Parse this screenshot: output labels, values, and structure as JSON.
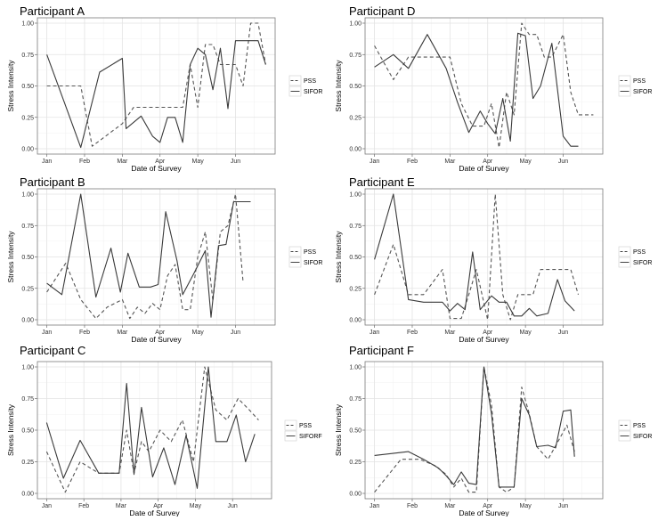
{
  "chart_data": [
    {
      "type": "line",
      "title": "Participant A",
      "xlabel": "Date of Survey",
      "ylabel": "Stress Intensity",
      "x_ticks": [
        "Jan",
        "Feb",
        "Mar",
        "Apr",
        "May",
        "Jun"
      ],
      "y_ticks": [
        "0.00",
        "0.25",
        "0.50",
        "0.75",
        "1.00"
      ],
      "ylim": [
        0,
        1
      ],
      "grid": true,
      "legend": "right",
      "series": [
        {
          "name": "PSS",
          "style": "dashed",
          "x": [
            0.0,
            0.5,
            0.9,
            1.2,
            2.0,
            2.3,
            2.6,
            2.9,
            3.2,
            3.4,
            3.6,
            3.8,
            4.0,
            4.2,
            4.4,
            4.6,
            4.8,
            5.0,
            5.2,
            5.4,
            5.6,
            5.8
          ],
          "values": [
            0.5,
            0.5,
            0.5,
            0.02,
            0.2,
            0.33,
            0.33,
            0.33,
            0.33,
            0.33,
            0.33,
            0.67,
            0.33,
            0.83,
            0.83,
            0.67,
            0.67,
            0.67,
            0.5,
            1.0,
            1.0,
            0.67
          ]
        },
        {
          "name": "SIFOR",
          "style": "solid",
          "x": [
            0.0,
            0.45,
            0.9,
            1.4,
            2.0,
            2.1,
            2.5,
            2.8,
            3.0,
            3.2,
            3.4,
            3.6,
            3.8,
            4.0,
            4.2,
            4.4,
            4.6,
            4.8,
            5.0,
            5.2,
            5.4,
            5.6,
            5.8
          ],
          "values": [
            0.75,
            0.38,
            0.01,
            0.61,
            0.72,
            0.16,
            0.26,
            0.1,
            0.05,
            0.25,
            0.25,
            0.05,
            0.67,
            0.8,
            0.75,
            0.47,
            0.8,
            0.32,
            0.86,
            0.86,
            0.86,
            0.86,
            0.67
          ]
        }
      ]
    },
    {
      "type": "line",
      "title": "Participant D",
      "xlabel": "Date of Survey",
      "ylabel": "Stress Intensity",
      "x_ticks": [
        "Jan",
        "Feb",
        "Mar",
        "Apr",
        "May",
        "Jun"
      ],
      "y_ticks": [
        "0.00",
        "0.25",
        "0.50",
        "0.75",
        "1.00"
      ],
      "ylim": [
        0,
        1
      ],
      "grid": true,
      "legend": "right",
      "series": [
        {
          "name": "PSS",
          "style": "dashed",
          "x": [
            0.0,
            0.5,
            0.9,
            1.2,
            1.6,
            2.0,
            2.3,
            2.6,
            2.9,
            3.1,
            3.3,
            3.5,
            3.7,
            3.9,
            4.1,
            4.3,
            4.5,
            4.7,
            5.0,
            5.2,
            5.4,
            5.6,
            5.8
          ],
          "values": [
            0.82,
            0.55,
            0.73,
            0.73,
            0.73,
            0.73,
            0.36,
            0.18,
            0.18,
            0.36,
            0.01,
            0.45,
            0.27,
            1.0,
            0.91,
            0.91,
            0.73,
            0.73,
            0.91,
            0.45,
            0.27,
            0.27,
            0.27
          ]
        },
        {
          "name": "SIFOR",
          "style": "solid",
          "x": [
            0.0,
            0.5,
            0.9,
            1.4,
            1.9,
            2.2,
            2.5,
            2.8,
            3.0,
            3.2,
            3.4,
            3.6,
            3.8,
            4.0,
            4.2,
            4.4,
            4.7,
            5.0,
            5.2,
            5.4
          ],
          "values": [
            0.65,
            0.75,
            0.64,
            0.91,
            0.64,
            0.37,
            0.13,
            0.3,
            0.2,
            0.12,
            0.4,
            0.06,
            0.92,
            0.9,
            0.4,
            0.5,
            0.84,
            0.1,
            0.02,
            0.02
          ]
        }
      ]
    },
    {
      "type": "line",
      "title": "Participant B",
      "xlabel": "Date of Survey",
      "ylabel": "Stress Intensity",
      "x_ticks": [
        "Jan",
        "Feb",
        "Mar",
        "Apr",
        "May",
        "Jun"
      ],
      "y_ticks": [
        "0.00",
        "0.25",
        "0.50",
        "0.75",
        "1.00"
      ],
      "ylim": [
        0,
        1
      ],
      "grid": true,
      "legend": "right",
      "series": [
        {
          "name": "PSS",
          "style": "dashed",
          "x": [
            0.0,
            0.5,
            0.9,
            1.3,
            1.6,
            2.0,
            2.2,
            2.4,
            2.6,
            2.8,
            3.0,
            3.2,
            3.4,
            3.6,
            3.8,
            4.0,
            4.2,
            4.4,
            4.6,
            4.8,
            5.0,
            5.2
          ],
          "values": [
            0.22,
            0.45,
            0.16,
            0.01,
            0.1,
            0.16,
            0.01,
            0.1,
            0.05,
            0.13,
            0.08,
            0.35,
            0.44,
            0.08,
            0.08,
            0.5,
            0.7,
            0.15,
            0.7,
            0.75,
            1.0,
            0.3
          ]
        },
        {
          "name": "SIFOR",
          "style": "solid",
          "x": [
            0.0,
            0.4,
            0.9,
            1.3,
            1.7,
            1.95,
            2.15,
            2.45,
            2.75,
            2.95,
            3.15,
            3.45,
            3.6,
            3.9,
            4.2,
            4.35,
            4.55,
            4.75,
            4.95,
            5.15,
            5.4
          ],
          "values": [
            0.29,
            0.2,
            1.0,
            0.18,
            0.57,
            0.22,
            0.53,
            0.26,
            0.26,
            0.28,
            0.86,
            0.47,
            0.2,
            0.37,
            0.55,
            0.02,
            0.59,
            0.6,
            0.94,
            0.94,
            0.94
          ]
        }
      ]
    },
    {
      "type": "line",
      "title": "Participant E",
      "xlabel": "Date of Survey",
      "ylabel": "Stress Intensity",
      "x_ticks": [
        "Jan",
        "Feb",
        "Mar",
        "Apr",
        "May",
        "Jun"
      ],
      "y_ticks": [
        "0.00",
        "0.25",
        "0.50",
        "0.75",
        "1.00"
      ],
      "ylim": [
        0,
        1
      ],
      "grid": true,
      "legend": "right",
      "series": [
        {
          "name": "PSS",
          "style": "dashed",
          "x": [
            0.0,
            0.5,
            0.9,
            1.3,
            1.8,
            2.0,
            2.3,
            2.5,
            2.7,
            3.0,
            3.2,
            3.4,
            3.6,
            3.8,
            4.0,
            4.2,
            4.4,
            4.8,
            5.0,
            5.2,
            5.4
          ],
          "values": [
            0.2,
            0.6,
            0.2,
            0.2,
            0.4,
            0.01,
            0.01,
            0.2,
            0.4,
            0.0,
            1.0,
            0.2,
            0.0,
            0.2,
            0.2,
            0.2,
            0.4,
            0.4,
            0.4,
            0.4,
            0.2
          ]
        },
        {
          "name": "SIFOR",
          "style": "solid",
          "x": [
            0.0,
            0.5,
            0.9,
            1.3,
            1.8,
            2.0,
            2.2,
            2.4,
            2.6,
            2.8,
            3.1,
            3.3,
            3.5,
            3.7,
            3.9,
            4.1,
            4.3,
            4.6,
            4.85,
            5.05,
            5.3
          ],
          "values": [
            0.48,
            1.0,
            0.16,
            0.14,
            0.14,
            0.07,
            0.13,
            0.08,
            0.54,
            0.08,
            0.19,
            0.14,
            0.14,
            0.03,
            0.03,
            0.09,
            0.03,
            0.05,
            0.32,
            0.15,
            0.07
          ]
        }
      ]
    },
    {
      "type": "line",
      "title": "Participant C",
      "xlabel": "Date of Survey",
      "ylabel": "Stress Intensity",
      "x_ticks": [
        "Jan",
        "Feb",
        "Mar",
        "Apr",
        "May",
        "Jun"
      ],
      "y_ticks": [
        "0.00",
        "0.25",
        "0.50",
        "0.75",
        "1.00"
      ],
      "ylim": [
        0,
        1
      ],
      "grid": true,
      "legend": "right",
      "series": [
        {
          "name": "PSS",
          "style": "dashed",
          "x": [
            0.0,
            0.5,
            0.9,
            1.4,
            1.95,
            2.15,
            2.35,
            2.55,
            2.75,
            3.05,
            3.35,
            3.65,
            3.95,
            4.25,
            4.55,
            4.85,
            5.15,
            5.45,
            5.7
          ],
          "values": [
            0.33,
            0.01,
            0.25,
            0.16,
            0.16,
            0.5,
            0.16,
            0.41,
            0.33,
            0.5,
            0.41,
            0.58,
            0.25,
            1.0,
            0.66,
            0.58,
            0.75,
            0.66,
            0.58
          ]
        },
        {
          "name": "SIFORF",
          "style": "solid",
          "x": [
            0.0,
            0.45,
            0.9,
            1.4,
            1.95,
            2.15,
            2.35,
            2.55,
            2.85,
            3.15,
            3.45,
            3.75,
            4.05,
            4.35,
            4.55,
            4.85,
            5.1,
            5.35,
            5.6
          ],
          "values": [
            0.56,
            0.12,
            0.42,
            0.16,
            0.16,
            0.87,
            0.15,
            0.68,
            0.13,
            0.36,
            0.07,
            0.46,
            0.04,
            1.0,
            0.41,
            0.41,
            0.62,
            0.25,
            0.47
          ]
        }
      ]
    },
    {
      "type": "line",
      "title": "Participant F",
      "xlabel": "Date of Survey",
      "ylabel": "Stress Intensity",
      "x_ticks": [
        "Jan",
        "Feb",
        "Mar",
        "Apr",
        "May",
        "Jun"
      ],
      "y_ticks": [
        "0.00",
        "0.25",
        "0.50",
        "0.75",
        "1.00"
      ],
      "ylim": [
        0,
        1
      ],
      "grid": true,
      "legend": "right",
      "series": [
        {
          "name": "PSS",
          "style": "dashed",
          "x": [
            0.0,
            0.7,
            1.2,
            1.6,
            1.9,
            2.1,
            2.3,
            2.5,
            2.7,
            2.9,
            3.1,
            3.3,
            3.5,
            3.7,
            3.9,
            4.1,
            4.3,
            4.6,
            4.9,
            5.1,
            5.3
          ],
          "values": [
            0.01,
            0.27,
            0.27,
            0.22,
            0.15,
            0.05,
            0.12,
            0.01,
            0.01,
            1.0,
            0.7,
            0.05,
            0.01,
            0.05,
            0.84,
            0.63,
            0.37,
            0.27,
            0.43,
            0.54,
            0.33
          ]
        },
        {
          "name": "SIFOR",
          "style": "solid",
          "x": [
            0.0,
            0.9,
            1.3,
            1.7,
            1.9,
            2.1,
            2.3,
            2.5,
            2.7,
            2.9,
            3.1,
            3.3,
            3.5,
            3.7,
            3.9,
            4.1,
            4.3,
            4.6,
            4.8,
            5.0,
            5.2,
            5.3
          ],
          "values": [
            0.3,
            0.33,
            0.27,
            0.2,
            0.14,
            0.07,
            0.17,
            0.08,
            0.07,
            1.0,
            0.63,
            0.05,
            0.05,
            0.05,
            0.75,
            0.62,
            0.37,
            0.38,
            0.36,
            0.65,
            0.66,
            0.29
          ]
        }
      ]
    }
  ]
}
